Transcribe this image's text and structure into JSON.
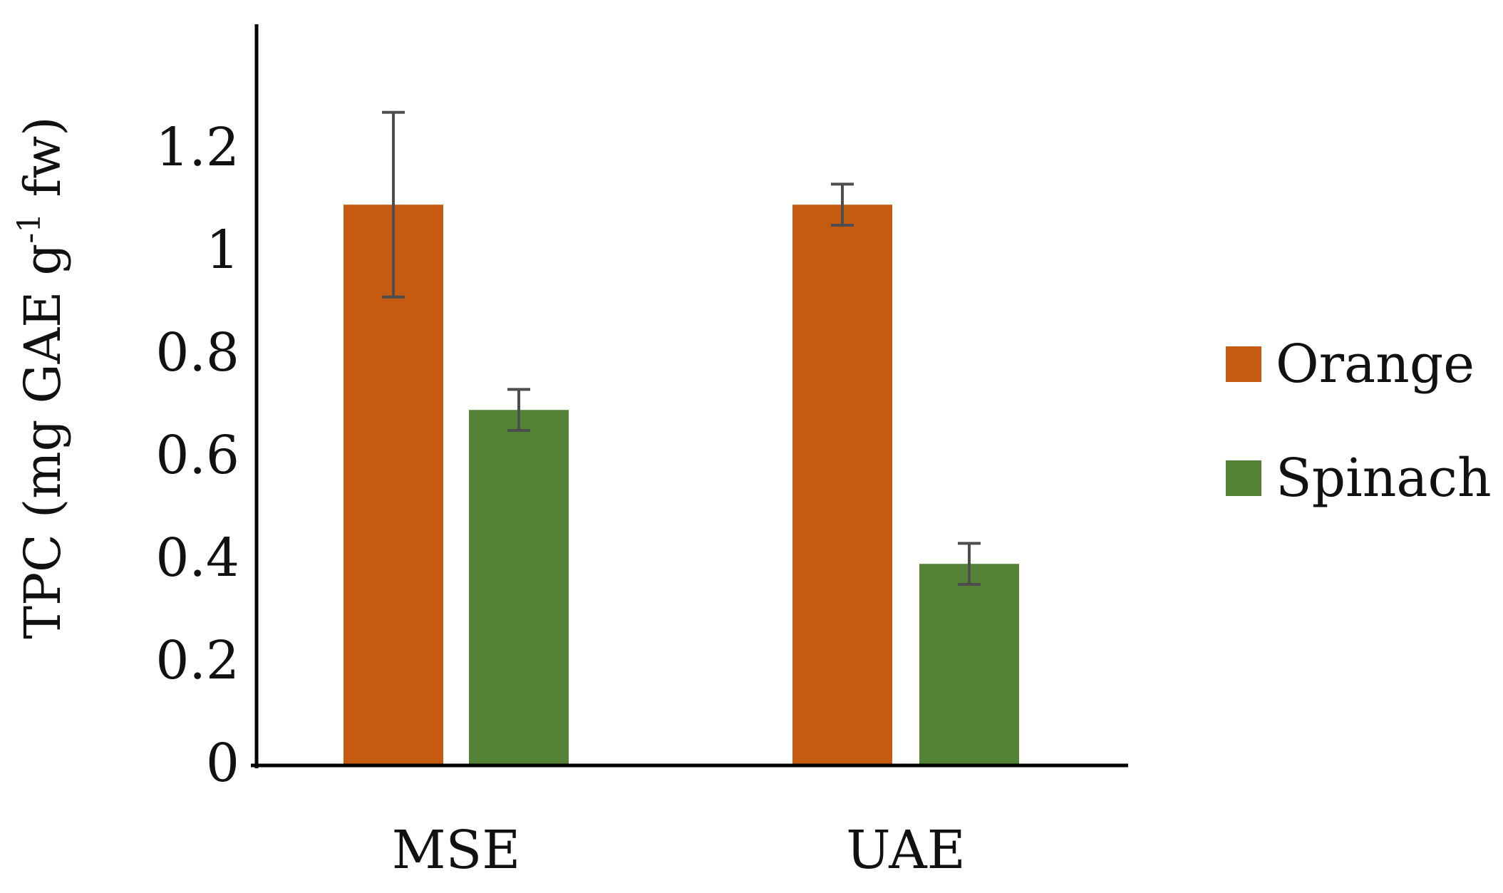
{
  "chart_data": {
    "type": "bar",
    "categories": [
      "MSE",
      "UAE"
    ],
    "series": [
      {
        "name": "Orange",
        "color": "#C55A11",
        "values": [
          1.09,
          1.09
        ],
        "errors": [
          0.18,
          0.04
        ]
      },
      {
        "name": "Spinach",
        "color": "#538135",
        "values": [
          0.69,
          0.39
        ],
        "errors": [
          0.04,
          0.04
        ]
      }
    ],
    "ylabel": {
      "prefix": "TPC (mg GAE g",
      "superscript": "-1",
      "suffix": " fw)"
    },
    "ylim": [
      0,
      1.3
    ],
    "yticks": [
      0,
      0.2,
      0.4,
      0.6,
      0.8,
      1,
      1.2
    ],
    "ytick_labels": [
      "0",
      "0.2",
      "0.4",
      "0.6",
      "0.8",
      "1",
      "1.2"
    ],
    "grid": false,
    "legend_position": "right"
  }
}
